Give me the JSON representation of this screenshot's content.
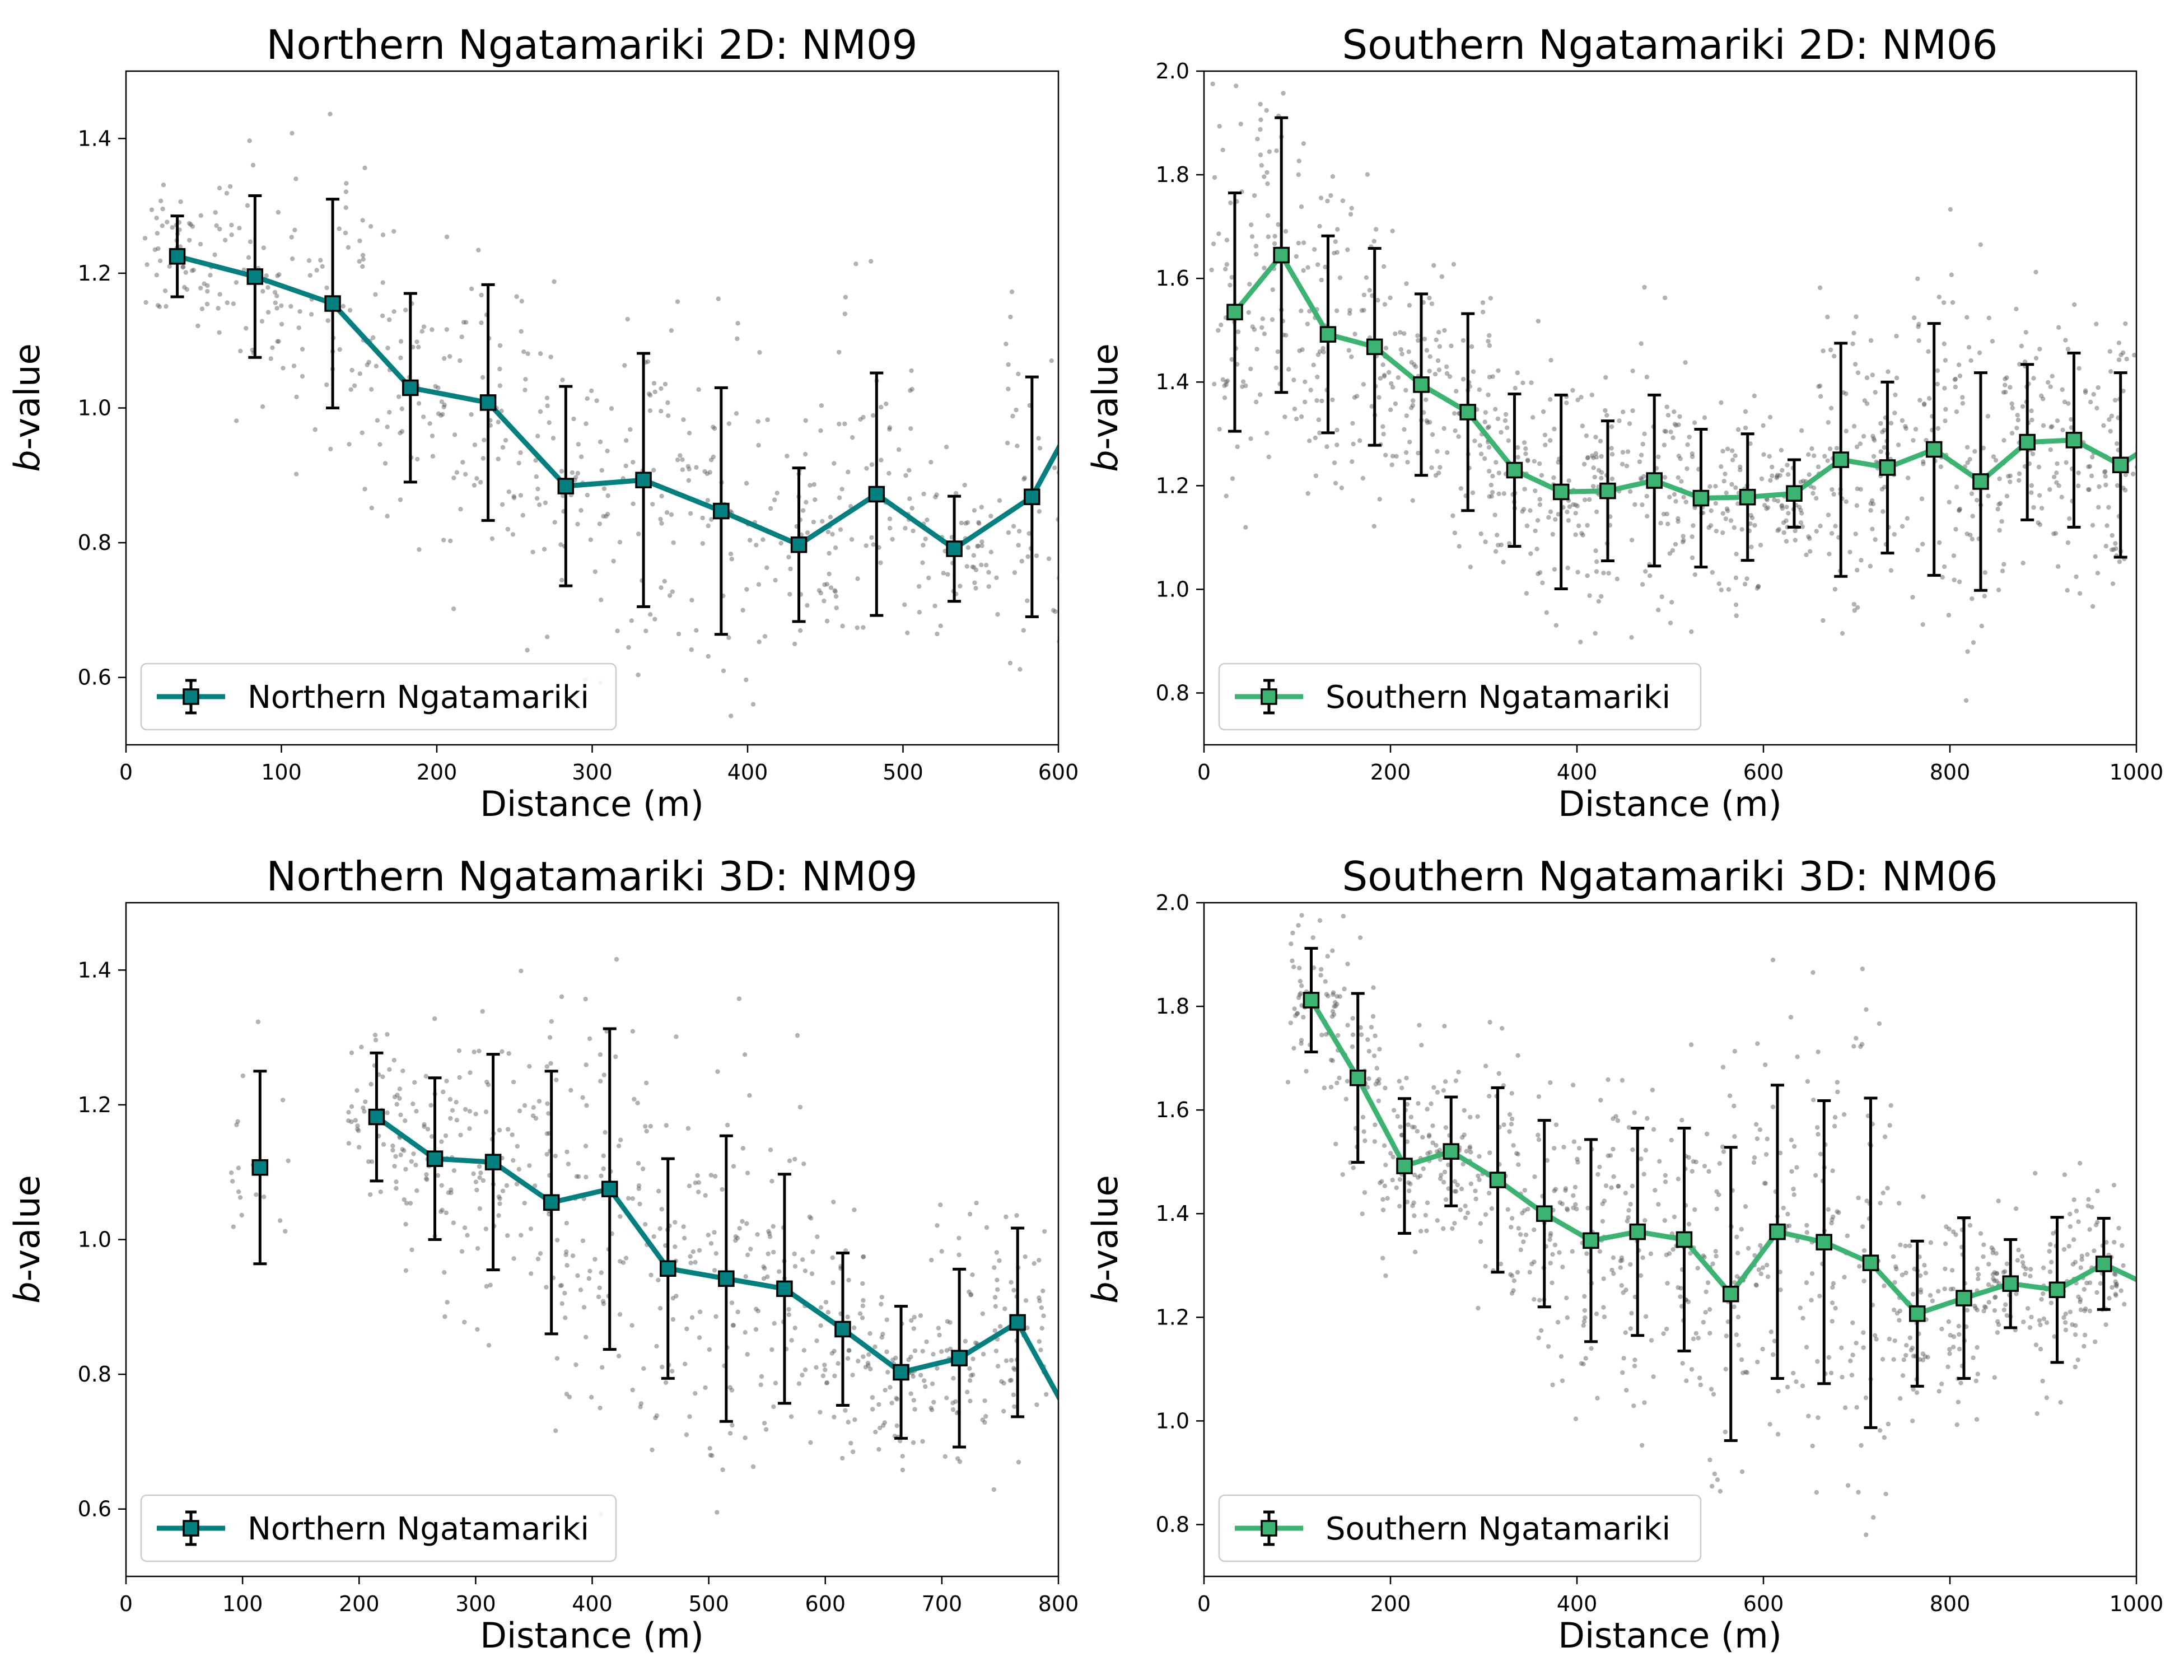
{
  "figure": {
    "colors": {
      "teal": "#037f7f",
      "green": "#3cb371",
      "scatter": "#555555",
      "errorbar": "#000000"
    }
  },
  "chart_data": [
    {
      "type": "line",
      "title": "Northern Ngatamariki 2D: NM09",
      "xlabel": "Distance (m)",
      "ylabel": "b-value",
      "ylabel_italic": "b",
      "ylabel_rest": "-value",
      "xlim": [
        0,
        600
      ],
      "ylim": [
        0.5,
        1.5
      ],
      "xticks": [
        0,
        100,
        200,
        300,
        400,
        500,
        600
      ],
      "yticks": [
        0.6,
        0.8,
        1.0,
        1.2,
        1.4
      ],
      "series": [
        {
          "name": "Northern Ngatamariki",
          "color": "#037f7f",
          "x": [
            33,
            83,
            133,
            183,
            233,
            283,
            333,
            383,
            433,
            483,
            533,
            583,
            633
          ],
          "y": [
            1.225,
            1.195,
            1.155,
            1.03,
            1.008,
            0.884,
            0.893,
            0.847,
            0.797,
            0.872,
            0.791,
            0.868,
            1.08
          ],
          "err": [
            0.06,
            0.12,
            0.155,
            0.14,
            0.175,
            0.148,
            0.188,
            0.183,
            0.114,
            0.18,
            0.078,
            0.178,
            0.0
          ]
        }
      ],
      "legend": "lower-left"
    },
    {
      "type": "line",
      "title": "Southern Ngatamariki 2D: NM06",
      "xlabel": "Distance (m)",
      "ylabel": "b-value",
      "ylabel_italic": "b",
      "ylabel_rest": "-value",
      "xlim": [
        0,
        1000
      ],
      "ylim": [
        0.7,
        2.0
      ],
      "xticks": [
        0,
        200,
        400,
        600,
        800,
        1000
      ],
      "yticks": [
        0.8,
        1.0,
        1.2,
        1.4,
        1.6,
        1.8,
        2.0
      ],
      "series": [
        {
          "name": "Southern Ngatamariki",
          "color": "#3cb371",
          "x": [
            33,
            83,
            133,
            183,
            233,
            283,
            333,
            383,
            433,
            483,
            533,
            583,
            633,
            683,
            733,
            783,
            833,
            883,
            933,
            983,
            1033
          ],
          "y": [
            1.535,
            1.645,
            1.492,
            1.468,
            1.395,
            1.342,
            1.23,
            1.188,
            1.19,
            1.21,
            1.176,
            1.178,
            1.185,
            1.25,
            1.235,
            1.27,
            1.208,
            1.284,
            1.288,
            1.24,
            1.3
          ],
          "err": [
            0.23,
            0.265,
            0.19,
            0.19,
            0.175,
            0.19,
            0.147,
            0.187,
            0.135,
            0.165,
            0.133,
            0.122,
            0.065,
            0.225,
            0.165,
            0.243,
            0.21,
            0.15,
            0.168,
            0.178,
            0.0
          ]
        }
      ],
      "legend": "lower-left"
    },
    {
      "type": "line",
      "title": "Northern Ngatamariki 3D: NM09",
      "xlabel": "Distance (m)",
      "ylabel": "b-value",
      "ylabel_italic": "b",
      "ylabel_rest": "-value",
      "xlim": [
        0,
        800
      ],
      "ylim": [
        0.5,
        1.5
      ],
      "xticks": [
        0,
        100,
        200,
        300,
        400,
        500,
        600,
        700,
        800
      ],
      "yticks": [
        0.6,
        0.8,
        1.0,
        1.2,
        1.4
      ],
      "series": [
        {
          "name": "Northern Ngatamariki",
          "color": "#037f7f",
          "isolated": {
            "x": 115,
            "y": 1.107,
            "err": 0.143
          },
          "x": [
            215,
            265,
            315,
            365,
            415,
            465,
            515,
            565,
            615,
            665,
            715,
            765,
            815
          ],
          "y": [
            1.182,
            1.12,
            1.115,
            1.055,
            1.075,
            0.957,
            0.942,
            0.927,
            0.867,
            0.803,
            0.824,
            0.877,
            0.72
          ],
          "err": [
            0.095,
            0.12,
            0.16,
            0.195,
            0.238,
            0.163,
            0.212,
            0.17,
            0.113,
            0.098,
            0.132,
            0.14,
            0.0
          ]
        }
      ],
      "legend": "lower-left"
    },
    {
      "type": "line",
      "title": "Southern Ngatamariki 3D: NM06",
      "xlabel": "Distance (m)",
      "ylabel": "b-value",
      "ylabel_italic": "b",
      "ylabel_rest": "-value",
      "xlim": [
        0,
        1000
      ],
      "ylim": [
        0.7,
        2.0
      ],
      "xticks": [
        0,
        200,
        400,
        600,
        800,
        1000
      ],
      "yticks": [
        0.8,
        1.0,
        1.2,
        1.4,
        1.6,
        1.8,
        2.0
      ],
      "series": [
        {
          "name": "Southern Ngatamariki",
          "color": "#3cb371",
          "x": [
            115,
            165,
            215,
            265,
            315,
            365,
            415,
            465,
            515,
            565,
            615,
            665,
            715,
            765,
            815,
            865,
            915,
            965,
            1015
          ],
          "y": [
            1.812,
            1.662,
            1.492,
            1.52,
            1.465,
            1.4,
            1.348,
            1.365,
            1.35,
            1.245,
            1.365,
            1.345,
            1.305,
            1.207,
            1.237,
            1.265,
            1.253,
            1.303,
            1.26
          ],
          "err": [
            0.1,
            0.163,
            0.13,
            0.105,
            0.178,
            0.18,
            0.195,
            0.2,
            0.215,
            0.283,
            0.283,
            0.273,
            0.318,
            0.14,
            0.155,
            0.085,
            0.14,
            0.088,
            0.0
          ]
        }
      ],
      "legend": "lower-left"
    }
  ]
}
